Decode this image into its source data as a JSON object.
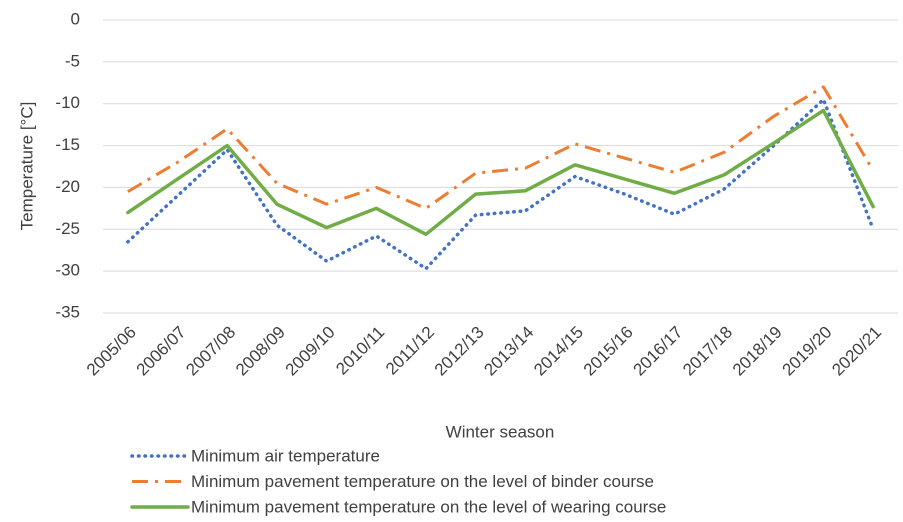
{
  "chart_data": {
    "type": "line",
    "ylabel": "Temperature [°C]",
    "xlabel": "Winter season",
    "categories": [
      "2005/06",
      "2006/07",
      "2007/08",
      "2008/09",
      "2009/10",
      "2010/11",
      "2011/12",
      "2012/13",
      "2013/14",
      "2014/15",
      "2015/16",
      "2016/17",
      "2017/18",
      "2018/19",
      "2019/20",
      "2020/21"
    ],
    "series": [
      {
        "name": "Minimum air temperature",
        "color": "#4472c4",
        "style": "dotted",
        "values": [
          -26.5,
          -21,
          -15.5,
          -24.5,
          -28.8,
          -25.8,
          -29.7,
          -23.3,
          -22.8,
          -18.7,
          -20.8,
          -23.2,
          -20.2,
          -15,
          -9.5,
          -25
        ]
      },
      {
        "name": "Minimum pavement temperature on the level of binder course",
        "color": "#ed7d31",
        "style": "dashdot",
        "values": [
          -20.5,
          -17,
          -13,
          -19.5,
          -22,
          -20,
          -22.5,
          -18.3,
          -17.7,
          -14.8,
          -16.5,
          -18.2,
          -15.8,
          -11.5,
          -8,
          -18
        ]
      },
      {
        "name": "Minimum pavement temperature on the level of wearing course",
        "color": "#70ad47",
        "style": "solid",
        "values": [
          -23,
          -19,
          -15,
          -22,
          -24.8,
          -22.5,
          -25.6,
          -20.8,
          -20.4,
          -17.3,
          -19,
          -20.7,
          -18.5,
          -14.7,
          -10.8,
          -22.3
        ]
      }
    ],
    "ylim": [
      -35,
      0
    ],
    "yticks": [
      0,
      -5,
      -10,
      -15,
      -20,
      -25,
      -30,
      -35
    ],
    "grid": true,
    "legend": "bottom"
  }
}
